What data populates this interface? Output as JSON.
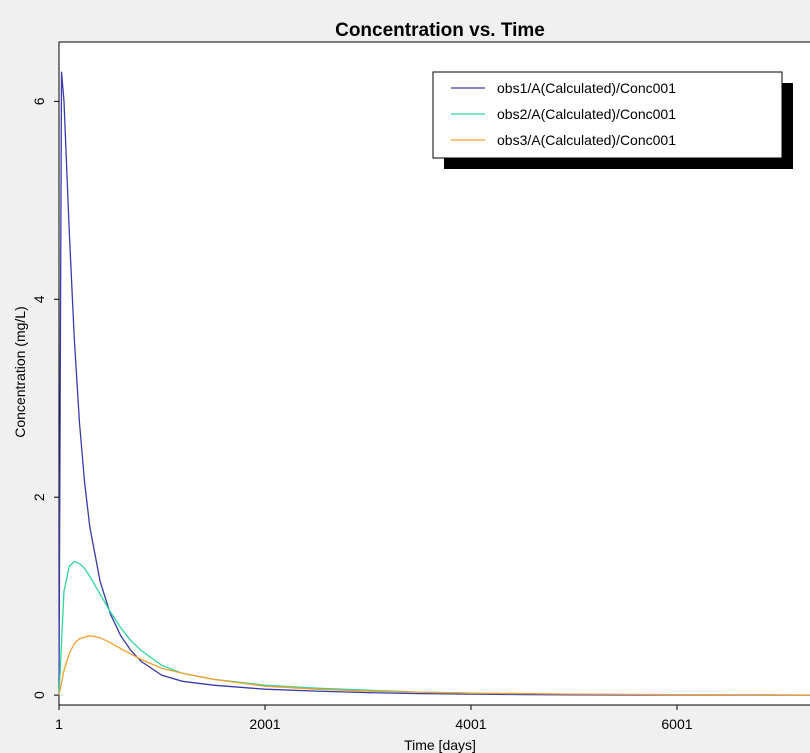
{
  "chart_data": {
    "type": "line",
    "title": "Concentration vs. Time",
    "xlabel": "Time [days]",
    "ylabel": "Concentration (mg/L)",
    "xlim": [
      1,
      7380
    ],
    "ylim": [
      -0.1,
      6.6
    ],
    "xticks": [
      1,
      2001,
      4001,
      6001
    ],
    "yticks": [
      0,
      2,
      4,
      6
    ],
    "legend_position": "top-right",
    "grid": false,
    "series": [
      {
        "name": "obs1/A(Calculated)/Conc001",
        "color": "#3a3aa8",
        "x": [
          1,
          25,
          50,
          100,
          150,
          200,
          250,
          300,
          400,
          500,
          600,
          700,
          800,
          1000,
          1200,
          1500,
          2000,
          2500,
          3000,
          3500,
          4000,
          4500,
          5000,
          6000,
          7380
        ],
        "y": [
          0,
          6.3,
          6.0,
          4.7,
          3.6,
          2.75,
          2.15,
          1.7,
          1.15,
          0.82,
          0.6,
          0.45,
          0.34,
          0.2,
          0.14,
          0.1,
          0.06,
          0.04,
          0.025,
          0.015,
          0.01,
          0.005,
          0.003,
          0.001,
          0.0
        ]
      },
      {
        "name": "obs2/A(Calculated)/Conc001",
        "color": "#2ed6a2",
        "x": [
          1,
          50,
          100,
          150,
          200,
          250,
          300,
          400,
          500,
          600,
          700,
          800,
          1000,
          1200,
          1500,
          2000,
          2500,
          3000,
          3500,
          4000,
          4500
        ],
        "y": [
          0,
          1.05,
          1.3,
          1.35,
          1.33,
          1.28,
          1.2,
          1.02,
          0.84,
          0.68,
          0.55,
          0.45,
          0.3,
          0.22,
          0.16,
          0.1,
          0.07,
          0.05,
          0.03,
          0.02,
          0.015
        ]
      },
      {
        "name": "obs3/A(Calculated)/Conc001",
        "color": "#f0a030",
        "x": [
          1,
          50,
          100,
          150,
          200,
          300,
          400,
          500,
          600,
          800,
          1000,
          1200,
          1500,
          2000,
          2500,
          3000,
          3500,
          4000,
          5000,
          6000,
          7380
        ],
        "y": [
          0,
          0.25,
          0.42,
          0.52,
          0.57,
          0.6,
          0.58,
          0.53,
          0.47,
          0.36,
          0.27,
          0.22,
          0.16,
          0.09,
          0.06,
          0.04,
          0.03,
          0.02,
          0.01,
          0.005,
          0.0
        ]
      }
    ]
  }
}
